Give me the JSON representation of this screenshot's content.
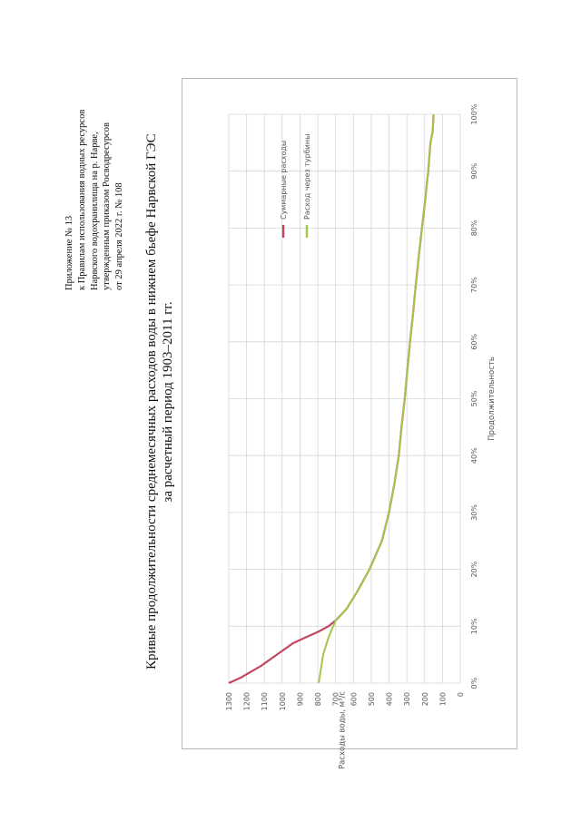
{
  "document": {
    "appendix_lines": [
      "Приложение № 13",
      "к Правилам использования водных ресурсов",
      "Нарвского водохранилища на р. Нарве,",
      "утвержденным приказом Росводресурсов",
      "от 29 апреля 2022 г. № 108"
    ],
    "title_line1": "Кривые продолжительности среднемесячных расходов воды в нижнем бьефе Нарвской ГЭС",
    "title_line2": "за расчетный период 1903–2011 гг."
  },
  "chart_data": {
    "type": "line",
    "title": "",
    "xlabel": "Продолжительность",
    "ylabel": "Расходы воды, м³/с",
    "xlim": [
      0,
      100
    ],
    "ylim": [
      0,
      1300
    ],
    "x_tick_labels": [
      "0%",
      "10%",
      "20%",
      "30%",
      "40%",
      "50%",
      "60%",
      "70%",
      "80%",
      "90%",
      "100%"
    ],
    "y_tick_labels": [
      "0",
      "100",
      "200",
      "300",
      "400",
      "500",
      "600",
      "700",
      "800",
      "900",
      "1000",
      "1100",
      "1200",
      "1300"
    ],
    "grid": true,
    "legend_position": "top-right",
    "colors": {
      "total": "#c0475e",
      "turbine": "#a3c64b"
    },
    "series": [
      {
        "name": "Суммарные расходы",
        "x": [
          0,
          1,
          3,
          5,
          7,
          8,
          9,
          10,
          11,
          13,
          16,
          20,
          25,
          30,
          35,
          40,
          45,
          50,
          55,
          60,
          65,
          70,
          75,
          80,
          85,
          90,
          95,
          97,
          100
        ],
        "y": [
          1300,
          1230,
          1120,
          1030,
          940,
          870,
          800,
          740,
          700,
          640,
          580,
          510,
          440,
          400,
          370,
          345,
          330,
          312,
          297,
          282,
          265,
          250,
          233,
          215,
          197,
          180,
          167,
          155,
          150
        ]
      },
      {
        "name": "Расход через турбины",
        "x": [
          0,
          2,
          5,
          8,
          11,
          13,
          16,
          20,
          25,
          30,
          35,
          40,
          45,
          50,
          55,
          60,
          65,
          70,
          75,
          80,
          85,
          90,
          95,
          97,
          100
        ],
        "y": [
          795,
          785,
          770,
          740,
          700,
          640,
          580,
          510,
          440,
          400,
          370,
          345,
          330,
          312,
          297,
          282,
          265,
          250,
          233,
          215,
          197,
          180,
          167,
          155,
          150
        ]
      }
    ]
  }
}
